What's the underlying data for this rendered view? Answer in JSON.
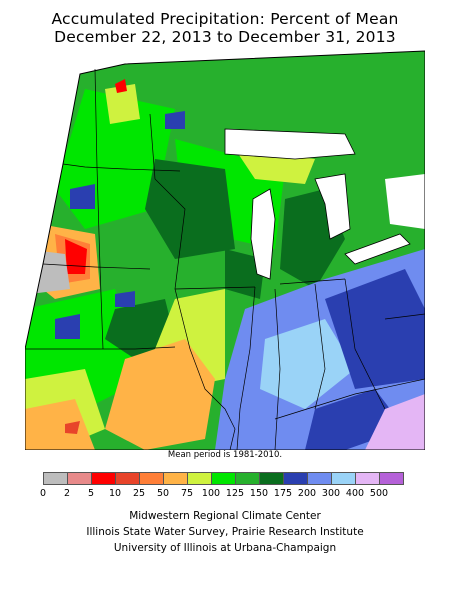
{
  "title": {
    "line1": "Accumulated Precipitation: Percent of Mean",
    "line2": "December 22, 2013 to December 31, 2013"
  },
  "map": {
    "region": "Midwestern United States",
    "colors": {
      "c0": "#bdbdbd",
      "c2": "#e88a8a",
      "c5": "#ff0000",
      "c10": "#e8442a",
      "c25": "#ff7f38",
      "c50": "#ffb347",
      "c75": "#cff23f",
      "c100": "#00e600",
      "c125": "#27b02d",
      "c150": "#0a6e1e",
      "c175": "#2a3fb0",
      "c200": "#6f8cf0",
      "c300": "#9ad3f7",
      "c400": "#e4b6f5",
      "c500": "#b561d8",
      "water": "#ffffff",
      "border": "#000000"
    }
  },
  "note": "Mean period is 1981-2010.",
  "legend": {
    "colors": [
      "#bdbdbd",
      "#e88a8a",
      "#ff0000",
      "#e8442a",
      "#ff7f38",
      "#ffb347",
      "#cff23f",
      "#00e600",
      "#27b02d",
      "#0a6e1e",
      "#2a3fb0",
      "#6f8cf0",
      "#9ad3f7",
      "#e4b6f5",
      "#b561d8"
    ],
    "ticks": [
      "0",
      "2",
      "5",
      "10",
      "25",
      "50",
      "75",
      "100",
      "125",
      "150",
      "175",
      "200",
      "300",
      "400",
      "500"
    ]
  },
  "credits": {
    "line1": "Midwestern Regional Climate Center",
    "line2": "Illinois State Water Survey, Prairie Research Institute",
    "line3": "University of Illinois at Urbana-Champaign"
  }
}
